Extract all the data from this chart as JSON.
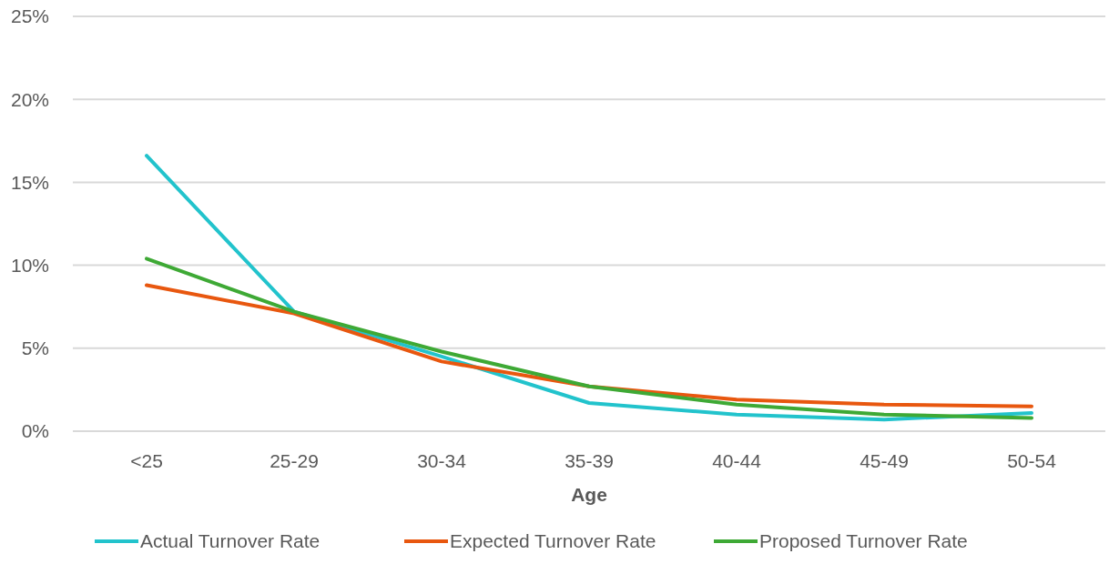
{
  "chart_data": {
    "type": "line",
    "xlabel": "Age",
    "categories": [
      "<25",
      "25-29",
      "30-34",
      "35-39",
      "40-44",
      "45-49",
      "50-54"
    ],
    "series": [
      {
        "name": "Actual Turnover Rate",
        "color": "#22c3cc",
        "values": [
          16.6,
          7.2,
          4.5,
          1.7,
          1.0,
          0.7,
          1.1
        ]
      },
      {
        "name": "Expected Turnover Rate",
        "color": "#e8570f",
        "values": [
          8.8,
          7.1,
          4.2,
          2.7,
          1.9,
          1.6,
          1.5
        ]
      },
      {
        "name": "Proposed Turnover Rate",
        "color": "#3ea935",
        "values": [
          10.4,
          7.2,
          4.8,
          2.7,
          1.6,
          1.0,
          0.8
        ]
      }
    ],
    "ylim": [
      0,
      25
    ],
    "yticks": [
      {
        "value": 0,
        "label": "0%"
      },
      {
        "value": 5,
        "label": "5%"
      },
      {
        "value": 10,
        "label": "10%"
      },
      {
        "value": 15,
        "label": "15%"
      },
      {
        "value": 20,
        "label": "20%"
      },
      {
        "value": 25,
        "label": "25%"
      }
    ],
    "grid": "y",
    "legend": "bottom",
    "marker": "none",
    "line_style": "solid"
  }
}
